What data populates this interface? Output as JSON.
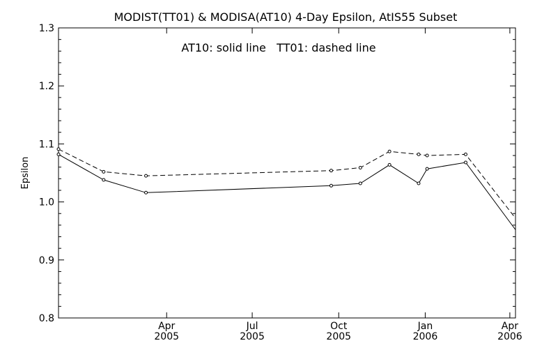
{
  "chart_data": {
    "type": "line",
    "title": "MODIST(TT01) & MODISA(AT10) 4-Day Epsilon, AtIS55 Subset",
    "annotation": "AT10: solid line   TT01: dashed line",
    "xlabel": "",
    "ylabel": "Epsilon",
    "xlim": [
      "2004-12-07",
      "2006-04-07"
    ],
    "ylim": [
      0.8,
      1.3
    ],
    "x_ticks": [
      {
        "date": "2005-04-01",
        "label": "Apr",
        "year": "2005"
      },
      {
        "date": "2005-07-01",
        "label": "Jul",
        "year": "2005"
      },
      {
        "date": "2005-10-01",
        "label": "Oct",
        "year": "2005"
      },
      {
        "date": "2006-01-01",
        "label": "Jan",
        "year": "2006"
      },
      {
        "date": "2006-04-01",
        "label": "Apr",
        "year": "2006"
      }
    ],
    "y_ticks": [
      "0.8",
      "0.9",
      "1.0",
      "1.1",
      "1.2",
      "1.3"
    ],
    "series": [
      {
        "name": "AT10",
        "style": "solid",
        "color": "#000000",
        "x": [
          "2004-12-07",
          "2005-01-24",
          "2005-03-10",
          "2005-09-23",
          "2005-10-24",
          "2005-11-24",
          "2005-12-25",
          "2006-01-03",
          "2006-02-13",
          "2006-04-07"
        ],
        "y": [
          1.082,
          1.038,
          1.016,
          1.028,
          1.032,
          1.064,
          1.032,
          1.057,
          1.068,
          0.952
        ]
      },
      {
        "name": "TT01",
        "style": "dashed",
        "color": "#000000",
        "x": [
          "2004-12-07",
          "2005-01-24",
          "2005-03-10",
          "2005-09-23",
          "2005-10-24",
          "2005-11-24",
          "2005-12-25",
          "2006-01-03",
          "2006-02-13",
          "2006-04-07"
        ],
        "y": [
          1.091,
          1.052,
          1.045,
          1.054,
          1.059,
          1.087,
          1.082,
          1.08,
          1.082,
          0.972
        ]
      }
    ]
  }
}
